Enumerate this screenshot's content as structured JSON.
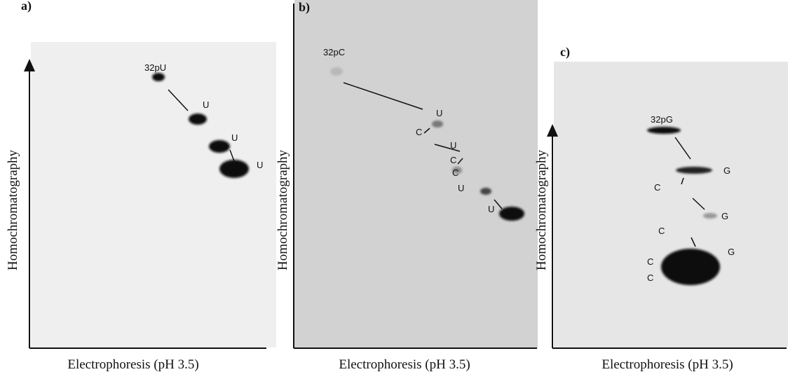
{
  "panels": [
    {
      "label": "a)",
      "y_axis_label": "Homochromatography",
      "x_axis_label": "Electrophoresis (pH 3.5)",
      "spot_labels": [
        "32pU",
        "U",
        "U",
        "U"
      ]
    },
    {
      "label": "b)",
      "y_axis_label": "Homochromatography",
      "x_axis_label": "Electrophoresis (pH 3.5)",
      "spot_labels": [
        "32pC",
        "U",
        "C",
        "U",
        "C",
        "C",
        "U",
        "U"
      ]
    },
    {
      "label": "c)",
      "y_axis_label": "Homochromatography",
      "x_axis_label": "Electrophoresis (pH 3.5)",
      "spot_labels": [
        "32pG",
        "G",
        "C",
        "G",
        "C",
        "G",
        "C",
        "C"
      ]
    }
  ]
}
